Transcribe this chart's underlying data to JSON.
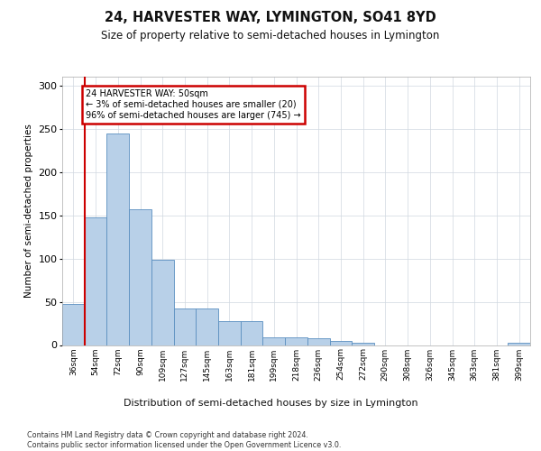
{
  "title_line1": "24, HARVESTER WAY, LYMINGTON, SO41 8YD",
  "title_line2": "Size of property relative to semi-detached houses in Lymington",
  "xlabel": "Distribution of semi-detached houses by size in Lymington",
  "ylabel": "Number of semi-detached properties",
  "bin_labels": [
    "36sqm",
    "54sqm",
    "72sqm",
    "90sqm",
    "109sqm",
    "127sqm",
    "145sqm",
    "163sqm",
    "181sqm",
    "199sqm",
    "218sqm",
    "236sqm",
    "254sqm",
    "272sqm",
    "290sqm",
    "308sqm",
    "326sqm",
    "345sqm",
    "363sqm",
    "381sqm",
    "399sqm"
  ],
  "bin_values": [
    47,
    147,
    244,
    157,
    98,
    42,
    42,
    28,
    28,
    9,
    9,
    8,
    5,
    3,
    0,
    0,
    0,
    0,
    0,
    0,
    3
  ],
  "bar_color": "#b8d0e8",
  "bar_edge_color": "#5a8fc0",
  "annotation_line1": "24 HARVESTER WAY: 50sqm",
  "annotation_line2": "← 3% of semi-detached houses are smaller (20)",
  "annotation_line3": "96% of semi-detached houses are larger (745) →",
  "annotation_box_facecolor": "#ffffff",
  "annotation_box_edgecolor": "#cc0000",
  "subject_line_color": "#cc0000",
  "ylim": [
    0,
    310
  ],
  "yticks": [
    0,
    50,
    100,
    150,
    200,
    250,
    300
  ],
  "footer_line1": "Contains HM Land Registry data © Crown copyright and database right 2024.",
  "footer_line2": "Contains public sector information licensed under the Open Government Licence v3.0.",
  "background_color": "#ffffff",
  "grid_color": "#d0d8e0"
}
